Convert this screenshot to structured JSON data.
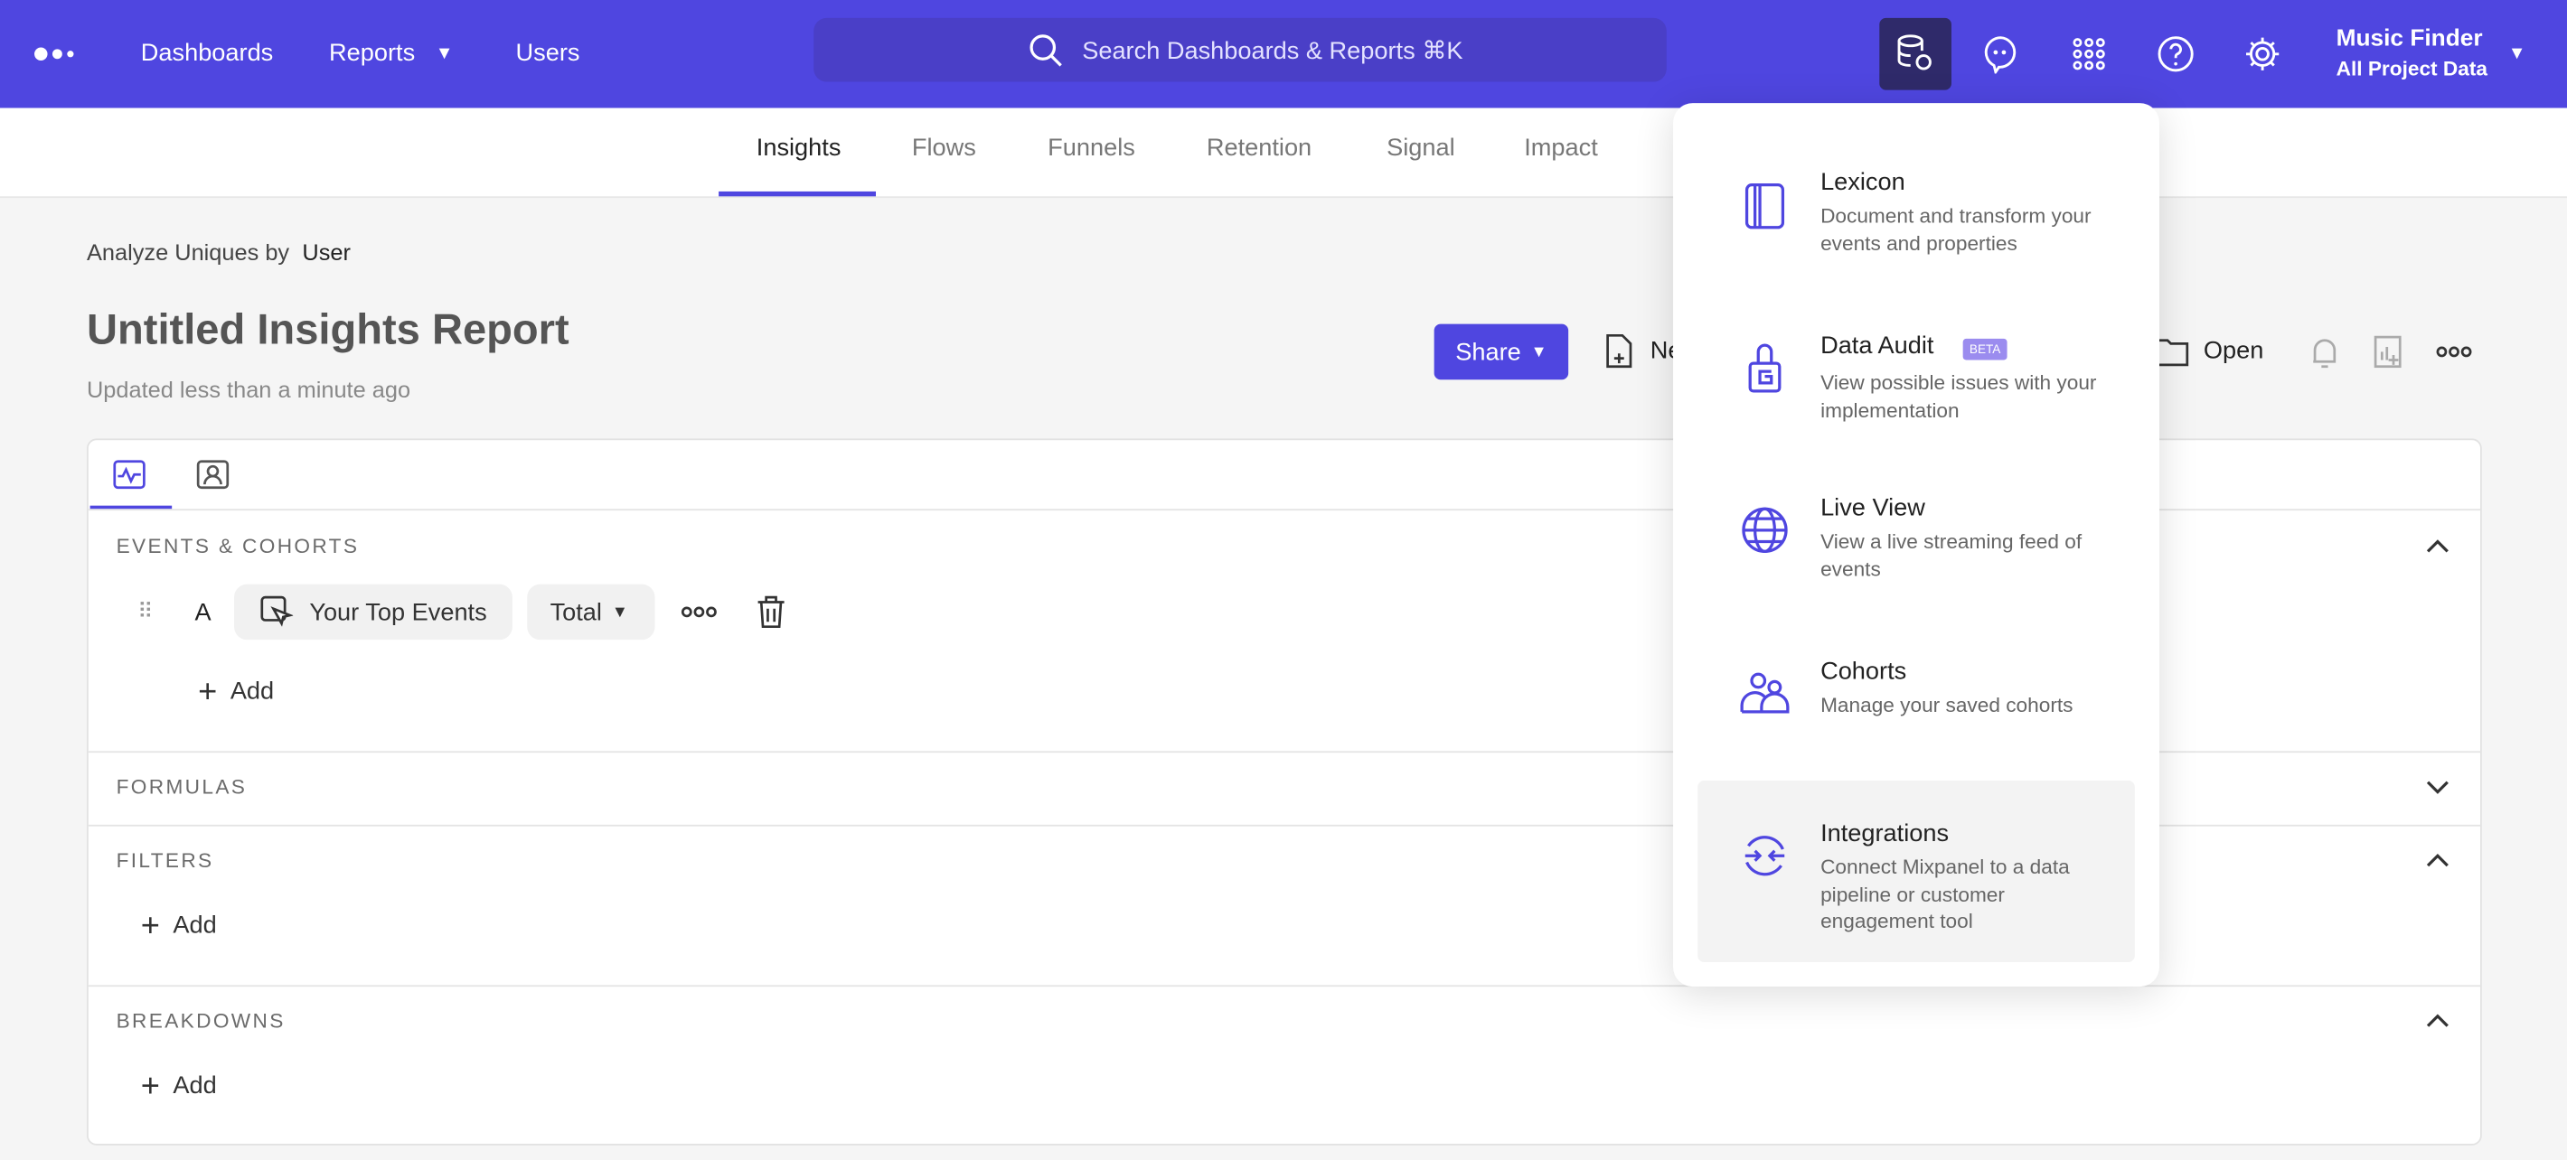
{
  "topbar": {
    "nav": [
      "Dashboards",
      "Reports",
      "Users"
    ],
    "search_placeholder": "Search Dashboards & Reports ⌘K",
    "project_name": "Music Finder",
    "project_scope": "All Project Data",
    "icons": [
      "data-management-icon",
      "chat-icon",
      "apps-grid-icon",
      "help-icon",
      "settings-icon"
    ],
    "brand_color": "#4f46e0"
  },
  "subnav": {
    "tabs": [
      "Insights",
      "Flows",
      "Funnels",
      "Retention",
      "Signal",
      "Impact"
    ],
    "active": "Insights"
  },
  "report": {
    "analyze_label": "Analyze Uniques by",
    "analyze_value": "User",
    "title": "Untitled Insights Report",
    "updated": "Updated less than a minute ago",
    "share": "Share",
    "new": "New",
    "open": "Open"
  },
  "query": {
    "events_header": "EVENTS & COHORTS",
    "row_letter": "A",
    "event": "Your Top Events",
    "measure": "Total",
    "add": "Add",
    "formulas_header": "FORMULAS",
    "filters_header": "FILTERS",
    "breakdowns_header": "BREAKDOWNS"
  },
  "menu": {
    "items": [
      {
        "title": "Lexicon",
        "desc": "Document and transform your events and properties"
      },
      {
        "title": "Data Audit",
        "badge": "BETA",
        "desc": "View possible issues with your implementation"
      },
      {
        "title": "Live View",
        "desc": "View a live streaming feed of events"
      },
      {
        "title": "Cohorts",
        "desc": "Manage your saved cohorts"
      },
      {
        "title": "Integrations",
        "desc": "Connect Mixpanel to a data pipeline or customer engagement tool"
      }
    ],
    "highlighted": "Integrations"
  }
}
